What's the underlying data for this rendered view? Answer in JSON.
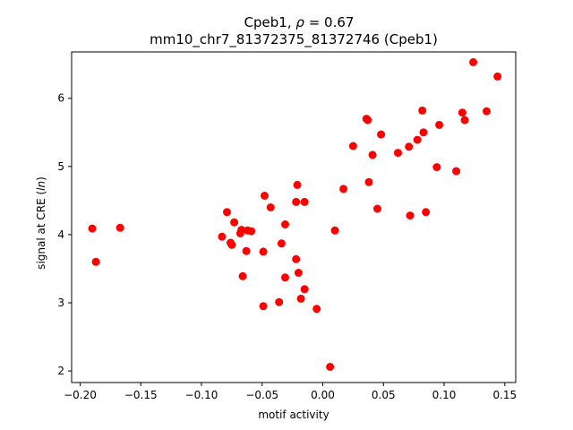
{
  "chart_data": {
    "type": "scatter",
    "title_line1_text": "Cpeb1, ",
    "title_line1_symbol": "ρ",
    "title_line1_value": " = 0.67",
    "title_line2": "mm10_chr7_81372375_81372746 (Cpeb1)",
    "xlabel": "motif activity",
    "ylabel_prefix": "signal at CRE (",
    "ylabel_italic": "ln",
    "ylabel_suffix": ")",
    "xlim": [
      -0.207,
      0.159
    ],
    "ylim": [
      1.83,
      6.68
    ],
    "xticks": [
      -0.2,
      -0.15,
      -0.1,
      -0.05,
      0.0,
      0.05,
      0.1,
      0.15
    ],
    "xtick_labels": [
      "−0.20",
      "−0.15",
      "−0.10",
      "−0.05",
      "0.00",
      "0.05",
      "0.10",
      "0.15"
    ],
    "yticks": [
      2,
      3,
      4,
      5,
      6
    ],
    "ytick_labels": [
      "2",
      "3",
      "4",
      "5",
      "6"
    ],
    "grid": false,
    "marker_color": "#ff0000",
    "points": [
      {
        "x": -0.19,
        "y": 4.09
      },
      {
        "x": -0.187,
        "y": 3.6
      },
      {
        "x": -0.167,
        "y": 4.1
      },
      {
        "x": -0.083,
        "y": 3.97
      },
      {
        "x": -0.079,
        "y": 4.33
      },
      {
        "x": -0.076,
        "y": 3.88
      },
      {
        "x": -0.075,
        "y": 3.85
      },
      {
        "x": -0.073,
        "y": 4.18
      },
      {
        "x": -0.068,
        "y": 4.02
      },
      {
        "x": -0.067,
        "y": 4.07
      },
      {
        "x": -0.066,
        "y": 3.39
      },
      {
        "x": -0.063,
        "y": 3.76
      },
      {
        "x": -0.062,
        "y": 4.06
      },
      {
        "x": -0.059,
        "y": 4.05
      },
      {
        "x": -0.049,
        "y": 3.75
      },
      {
        "x": -0.048,
        "y": 4.57
      },
      {
        "x": -0.049,
        "y": 2.95
      },
      {
        "x": -0.043,
        "y": 4.4
      },
      {
        "x": -0.036,
        "y": 3.01
      },
      {
        "x": -0.034,
        "y": 3.87
      },
      {
        "x": -0.031,
        "y": 4.15
      },
      {
        "x": -0.031,
        "y": 3.37
      },
      {
        "x": -0.022,
        "y": 4.48
      },
      {
        "x": -0.021,
        "y": 4.73
      },
      {
        "x": -0.022,
        "y": 3.64
      },
      {
        "x": -0.02,
        "y": 3.44
      },
      {
        "x": -0.018,
        "y": 3.06
      },
      {
        "x": -0.015,
        "y": 4.48
      },
      {
        "x": -0.015,
        "y": 3.2
      },
      {
        "x": -0.005,
        "y": 2.91
      },
      {
        "x": 0.006,
        "y": 2.06
      },
      {
        "x": 0.01,
        "y": 4.06
      },
      {
        "x": 0.017,
        "y": 4.67
      },
      {
        "x": 0.025,
        "y": 5.3
      },
      {
        "x": 0.036,
        "y": 5.7
      },
      {
        "x": 0.037,
        "y": 5.68
      },
      {
        "x": 0.038,
        "y": 4.77
      },
      {
        "x": 0.041,
        "y": 5.17
      },
      {
        "x": 0.045,
        "y": 4.38
      },
      {
        "x": 0.048,
        "y": 5.47
      },
      {
        "x": 0.062,
        "y": 5.2
      },
      {
        "x": 0.071,
        "y": 5.29
      },
      {
        "x": 0.072,
        "y": 4.28
      },
      {
        "x": 0.078,
        "y": 5.39
      },
      {
        "x": 0.082,
        "y": 5.82
      },
      {
        "x": 0.083,
        "y": 5.5
      },
      {
        "x": 0.085,
        "y": 4.33
      },
      {
        "x": 0.094,
        "y": 4.99
      },
      {
        "x": 0.096,
        "y": 5.61
      },
      {
        "x": 0.11,
        "y": 4.93
      },
      {
        "x": 0.115,
        "y": 5.79
      },
      {
        "x": 0.117,
        "y": 5.68
      },
      {
        "x": 0.124,
        "y": 6.53
      },
      {
        "x": 0.135,
        "y": 5.81
      },
      {
        "x": 0.144,
        "y": 6.32
      }
    ]
  }
}
